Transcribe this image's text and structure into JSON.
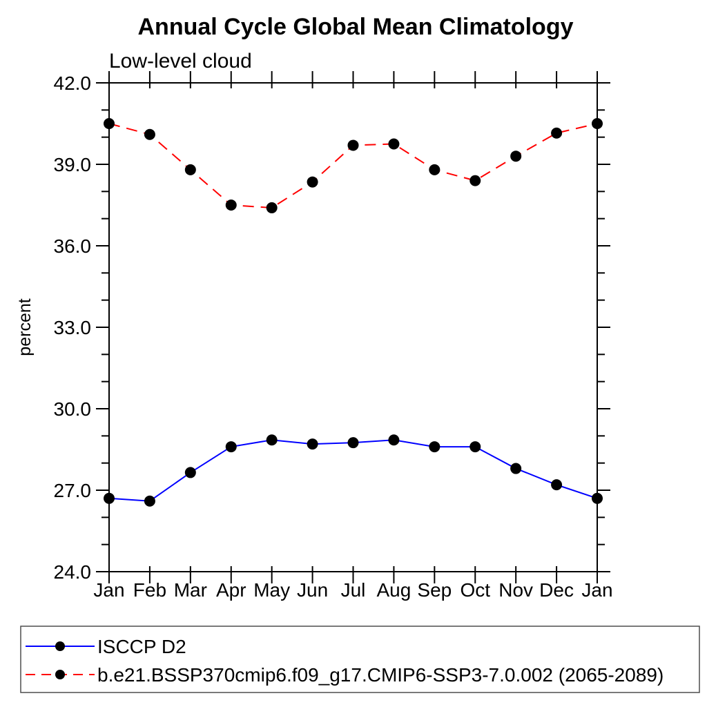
{
  "title": "Annual Cycle Global Mean Climatology",
  "subtitle": "Low-level cloud",
  "ylabel": "percent",
  "colors": {
    "obs_line": "#0000ff",
    "model_line": "#ff0000",
    "marker": "#000000",
    "axis": "#000000",
    "legend_border": "#4d4d4d",
    "background": "#ffffff"
  },
  "chart_data": {
    "type": "line",
    "title": "Annual Cycle Global Mean Climatology",
    "subtitle": "Low-level cloud",
    "xlabel": "",
    "ylabel": "percent",
    "categories": [
      "Jan",
      "Feb",
      "Mar",
      "Apr",
      "May",
      "Jun",
      "Jul",
      "Aug",
      "Sep",
      "Oct",
      "Nov",
      "Dec",
      "Jan"
    ],
    "ylim": [
      24.0,
      42.0
    ],
    "ytick_major": [
      24.0,
      27.0,
      30.0,
      33.0,
      36.0,
      39.0,
      42.0
    ],
    "ytick_labels": [
      "24.0",
      "27.0",
      "30.0",
      "33.0",
      "36.0",
      "39.0",
      "42.0"
    ],
    "ytick_minor_step": 1.0,
    "grid": false,
    "legend_position": "bottom-left-box",
    "series": [
      {
        "name": "ISCCP D2",
        "color": "#0000ff",
        "style": "solid",
        "marker": "circle",
        "marker_color": "#000000",
        "values": [
          26.7,
          26.6,
          27.65,
          28.6,
          28.85,
          28.7,
          28.75,
          28.85,
          28.6,
          28.6,
          27.8,
          27.2,
          26.7
        ]
      },
      {
        "name": "b.e21.BSSP370cmip6.f09_g17.CMIP6-SSP3-7.0.002 (2065-2089)",
        "color": "#ff0000",
        "style": "dashed",
        "marker": "circle",
        "marker_color": "#000000",
        "values": [
          40.5,
          40.1,
          38.8,
          37.5,
          37.4,
          38.35,
          39.7,
          39.75,
          38.8,
          38.4,
          39.3,
          40.15,
          40.5
        ]
      }
    ]
  }
}
